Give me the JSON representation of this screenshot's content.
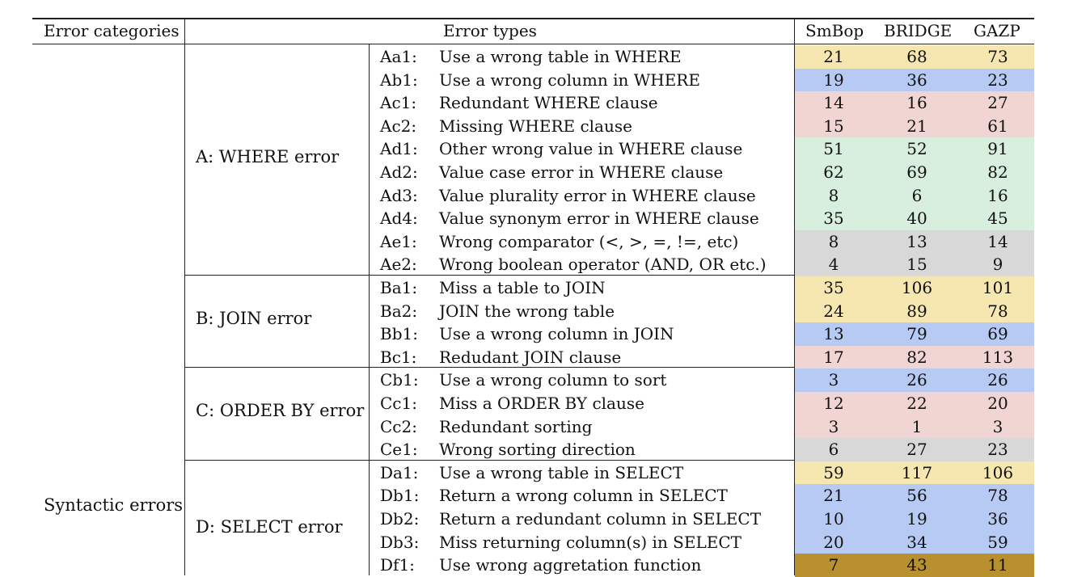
{
  "headers": {
    "category": "Error categories",
    "types": "Error types",
    "models": [
      "SmBop",
      "BRIDGE",
      "GAZP"
    ]
  },
  "category_label": "Syntactic errors",
  "groups": [
    {
      "label": "A: WHERE error",
      "rows": [
        0,
        9
      ]
    },
    {
      "label": "B: JOIN error",
      "rows": [
        10,
        13
      ]
    },
    {
      "label": "C: ORDER BY error",
      "rows": [
        14,
        17
      ]
    },
    {
      "label": "D: SELECT error",
      "rows": [
        18,
        22
      ]
    }
  ],
  "colors": {
    "yellow": "#f5e7af",
    "blue": "#b7caf3",
    "pink": "#f1d5d3",
    "green": "#d7efdc",
    "gray": "#d8d8d8",
    "gold": "#b8912e"
  },
  "rows": [
    {
      "code": "Aa1:",
      "desc": "Use a wrong table in WHERE",
      "values": [
        21,
        68,
        73
      ],
      "color": "yellow"
    },
    {
      "code": "Ab1:",
      "desc": "Use a wrong column in WHERE",
      "values": [
        19,
        36,
        23
      ],
      "color": "blue"
    },
    {
      "code": "Ac1:",
      "desc": "Redundant WHERE clause",
      "values": [
        14,
        16,
        27
      ],
      "color": "pink"
    },
    {
      "code": "Ac2:",
      "desc": "Missing WHERE clause",
      "values": [
        15,
        21,
        61
      ],
      "color": "pink"
    },
    {
      "code": "Ad1:",
      "desc": "Other wrong value in WHERE clause",
      "values": [
        51,
        52,
        91
      ],
      "color": "green"
    },
    {
      "code": "Ad2:",
      "desc": "Value case error in WHERE clause",
      "values": [
        62,
        69,
        82
      ],
      "color": "green"
    },
    {
      "code": "Ad3:",
      "desc": "Value plurality error in WHERE clause",
      "values": [
        8,
        6,
        16
      ],
      "color": "green"
    },
    {
      "code": "Ad4:",
      "desc": "Value synonym error in WHERE clause",
      "values": [
        35,
        40,
        45
      ],
      "color": "green"
    },
    {
      "code": "Ae1:",
      "desc": "Wrong comparator (<, >, =, !=, etc)",
      "values": [
        8,
        13,
        14
      ],
      "color": "gray"
    },
    {
      "code": "Ae2:",
      "desc": "Wrong boolean operator (AND, OR etc.)",
      "values": [
        4,
        15,
        9
      ],
      "color": "gray"
    },
    {
      "code": "Ba1:",
      "desc": "Miss a table to JOIN",
      "values": [
        35,
        106,
        101
      ],
      "color": "yellow"
    },
    {
      "code": "Ba2:",
      "desc": "JOIN the wrong table",
      "values": [
        24,
        89,
        78
      ],
      "color": "yellow"
    },
    {
      "code": "Bb1:",
      "desc": "Use a wrong column in JOIN",
      "values": [
        13,
        79,
        69
      ],
      "color": "blue"
    },
    {
      "code": "Bc1:",
      "desc": "Redudant JOIN clause",
      "values": [
        17,
        82,
        113
      ],
      "color": "pink"
    },
    {
      "code": "Cb1:",
      "desc": "Use a wrong column to sort",
      "values": [
        3,
        26,
        26
      ],
      "color": "blue"
    },
    {
      "code": "Cc1:",
      "desc": "Miss a ORDER BY clause",
      "values": [
        12,
        22,
        20
      ],
      "color": "pink"
    },
    {
      "code": "Cc2:",
      "desc": "Redundant sorting",
      "values": [
        3,
        1,
        3
      ],
      "color": "pink"
    },
    {
      "code": "Ce1:",
      "desc": "Wrong sorting direction",
      "values": [
        6,
        27,
        23
      ],
      "color": "gray"
    },
    {
      "code": "Da1:",
      "desc": "Use a wrong table in SELECT",
      "values": [
        59,
        117,
        106
      ],
      "color": "yellow"
    },
    {
      "code": "Db1:",
      "desc": "Return a wrong column in SELECT",
      "values": [
        21,
        56,
        78
      ],
      "color": "blue"
    },
    {
      "code": "Db2:",
      "desc": "Return a redundant column in SELECT",
      "values": [
        10,
        19,
        36
      ],
      "color": "blue"
    },
    {
      "code": "Db3:",
      "desc": "Miss returning column(s) in SELECT",
      "values": [
        20,
        34,
        59
      ],
      "color": "blue"
    },
    {
      "code": "Df1:",
      "desc": "Use wrong aggretation function",
      "values": [
        7,
        43,
        11
      ],
      "color": "gold"
    }
  ]
}
